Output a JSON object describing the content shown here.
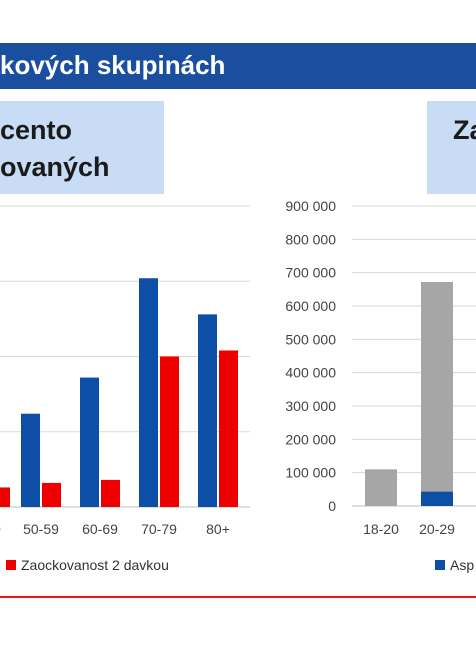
{
  "header": {
    "title": "kových skupinách"
  },
  "left_panel": {
    "title_line1": "cento",
    "title_line2": "ovaných"
  },
  "right_panel": {
    "title": "Za"
  },
  "colors": {
    "blue": "#0d4ea6",
    "red": "#ee0000",
    "gray": "#a6a6a6",
    "header": "#1a4fa0",
    "box": "#c9dcf6"
  },
  "legend": {
    "left_label": "Zaockovanost 2 davkou",
    "right_label": "Asp"
  },
  "chart_data": [
    {
      "type": "bar",
      "categories": [
        "…9",
        "50-59",
        "60-69",
        "70-79",
        "80+"
      ],
      "series": [
        {
          "values": [
            null,
            31,
            43,
            76,
            64
          ]
        },
        {
          "name": "Zaockovanost 2 davkou",
          "values": [
            6.5,
            8,
            9,
            50,
            52
          ]
        }
      ],
      "ylim": [
        0,
        100
      ],
      "grid": true
    },
    {
      "type": "bar",
      "categories": [
        "18-20",
        "20-29",
        "3…"
      ],
      "series": [
        {
          "values": [
            110000,
            672000,
            null
          ]
        },
        {
          "name": "Asp",
          "values": [
            0,
            43000,
            null
          ]
        }
      ],
      "yticks": [
        "900 000",
        "800 000",
        "700 000",
        "600 000",
        "500 000",
        "400 000",
        "300 000",
        "200 000",
        "100 000",
        "0"
      ],
      "ylim": [
        0,
        900000
      ],
      "grid": true
    }
  ]
}
